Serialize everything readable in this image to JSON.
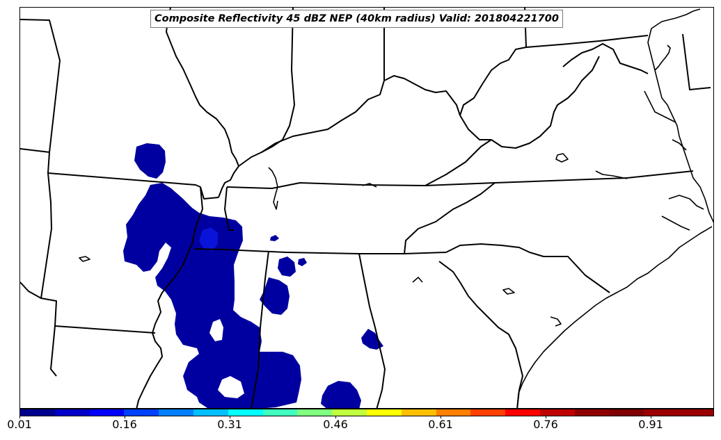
{
  "map": {
    "title": "Composite Reflectivity 45 dBZ NEP (40km radius) Valid: 201804221700",
    "field": "Neighborhood exceedance probability (dBZ >= 45)",
    "region": "Southeastern United States",
    "fill_color_low": "#0000a0",
    "fill_color_mid": "#0a14d8"
  },
  "colorbar": {
    "colors": [
      "#00008f",
      "#0000c8",
      "#0000ff",
      "#0040ff",
      "#0080ff",
      "#00bfff",
      "#00ffff",
      "#40ffbf",
      "#80ff80",
      "#bfff40",
      "#ffff00",
      "#ffbf00",
      "#ff8000",
      "#ff4000",
      "#ff0000",
      "#bf0000",
      "#8f0000",
      "#800000",
      "#9b0000",
      "#9b0000"
    ],
    "ticks": [
      "0.01",
      "0.16",
      "0.31",
      "0.46",
      "0.61",
      "0.76",
      "0.91"
    ],
    "tick_values": [
      0.01,
      0.16,
      0.31,
      0.46,
      0.61,
      0.76,
      0.91
    ],
    "min": 0.01,
    "max": 1.0
  }
}
